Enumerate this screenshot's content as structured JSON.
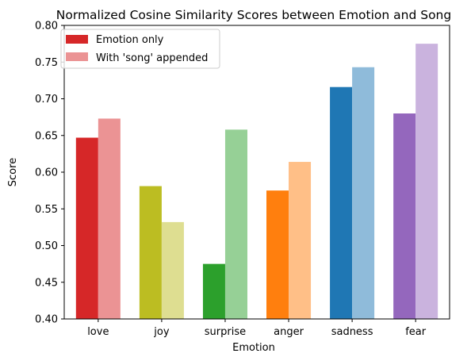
{
  "chart_data": {
    "type": "bar",
    "title": "Normalized Cosine Similarity Scores between Emotion and Song",
    "xlabel": "Emotion",
    "ylabel": "Score",
    "ylim": [
      0.4,
      0.8
    ],
    "yticks": [
      "0.40",
      "0.45",
      "0.50",
      "0.55",
      "0.60",
      "0.65",
      "0.70",
      "0.75",
      "0.80"
    ],
    "categories": [
      "love",
      "joy",
      "surprise",
      "anger",
      "sadness",
      "fear"
    ],
    "series": [
      {
        "name": "Emotion only",
        "values": [
          0.647,
          0.581,
          0.475,
          0.575,
          0.716,
          0.68
        ],
        "colors": [
          "#d62728",
          "#bcbd22",
          "#2ca02c",
          "#ff7f0e",
          "#1f77b4",
          "#9467bd"
        ]
      },
      {
        "name": "With 'song' appended",
        "values": [
          0.673,
          0.532,
          0.658,
          0.614,
          0.743,
          0.775
        ],
        "colors": [
          "#eb9394",
          "#dede91",
          "#96d096",
          "#ffbf87",
          "#8fbbda",
          "#cab3de"
        ]
      }
    ],
    "legend": {
      "placement": "top-left",
      "swatch_colors": [
        "#d62728",
        "#eb9394"
      ]
    },
    "grid": false
  }
}
